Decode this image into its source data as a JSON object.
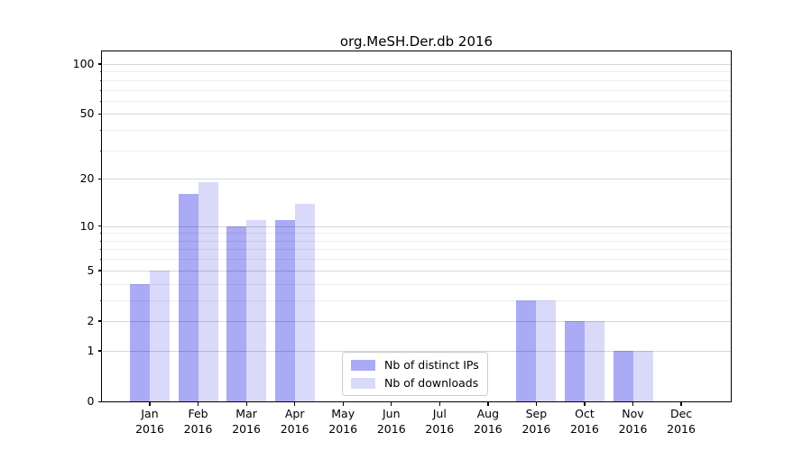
{
  "chart_data": {
    "type": "bar",
    "title": "org.MeSH.Der.db 2016",
    "yscale": "log1p",
    "grid": true,
    "legend_position": "lower center",
    "categories": [
      {
        "month": "Jan",
        "year": "2016"
      },
      {
        "month": "Feb",
        "year": "2016"
      },
      {
        "month": "Mar",
        "year": "2016"
      },
      {
        "month": "Apr",
        "year": "2016"
      },
      {
        "month": "May",
        "year": "2016"
      },
      {
        "month": "Jun",
        "year": "2016"
      },
      {
        "month": "Jul",
        "year": "2016"
      },
      {
        "month": "Aug",
        "year": "2016"
      },
      {
        "month": "Sep",
        "year": "2016"
      },
      {
        "month": "Oct",
        "year": "2016"
      },
      {
        "month": "Nov",
        "year": "2016"
      },
      {
        "month": "Dec",
        "year": "2016"
      }
    ],
    "series": [
      {
        "name": "Nb of distinct IPs",
        "color": "#aaaaf5",
        "values": [
          4,
          16,
          10,
          11,
          0,
          0,
          0,
          0,
          3,
          2,
          1,
          0
        ]
      },
      {
        "name": "Nb of downloads",
        "color": "#d9d9f9",
        "values": [
          5,
          19,
          11,
          14,
          0,
          0,
          0,
          0,
          3,
          2,
          1,
          0
        ]
      }
    ],
    "y_major_ticks": [
      0,
      1,
      2,
      5,
      10,
      20,
      50,
      100
    ],
    "y_minor_ticks": [
      3,
      4,
      6,
      7,
      8,
      9,
      30,
      40,
      60,
      70,
      80,
      90
    ],
    "ylim": [
      0,
      118
    ],
    "grid_major_color": "rgba(0,0,0,0.16)",
    "grid_minor_color": "rgba(0,0,0,0.065)",
    "axis_color": "#000000",
    "background_color": "#ffffff"
  }
}
